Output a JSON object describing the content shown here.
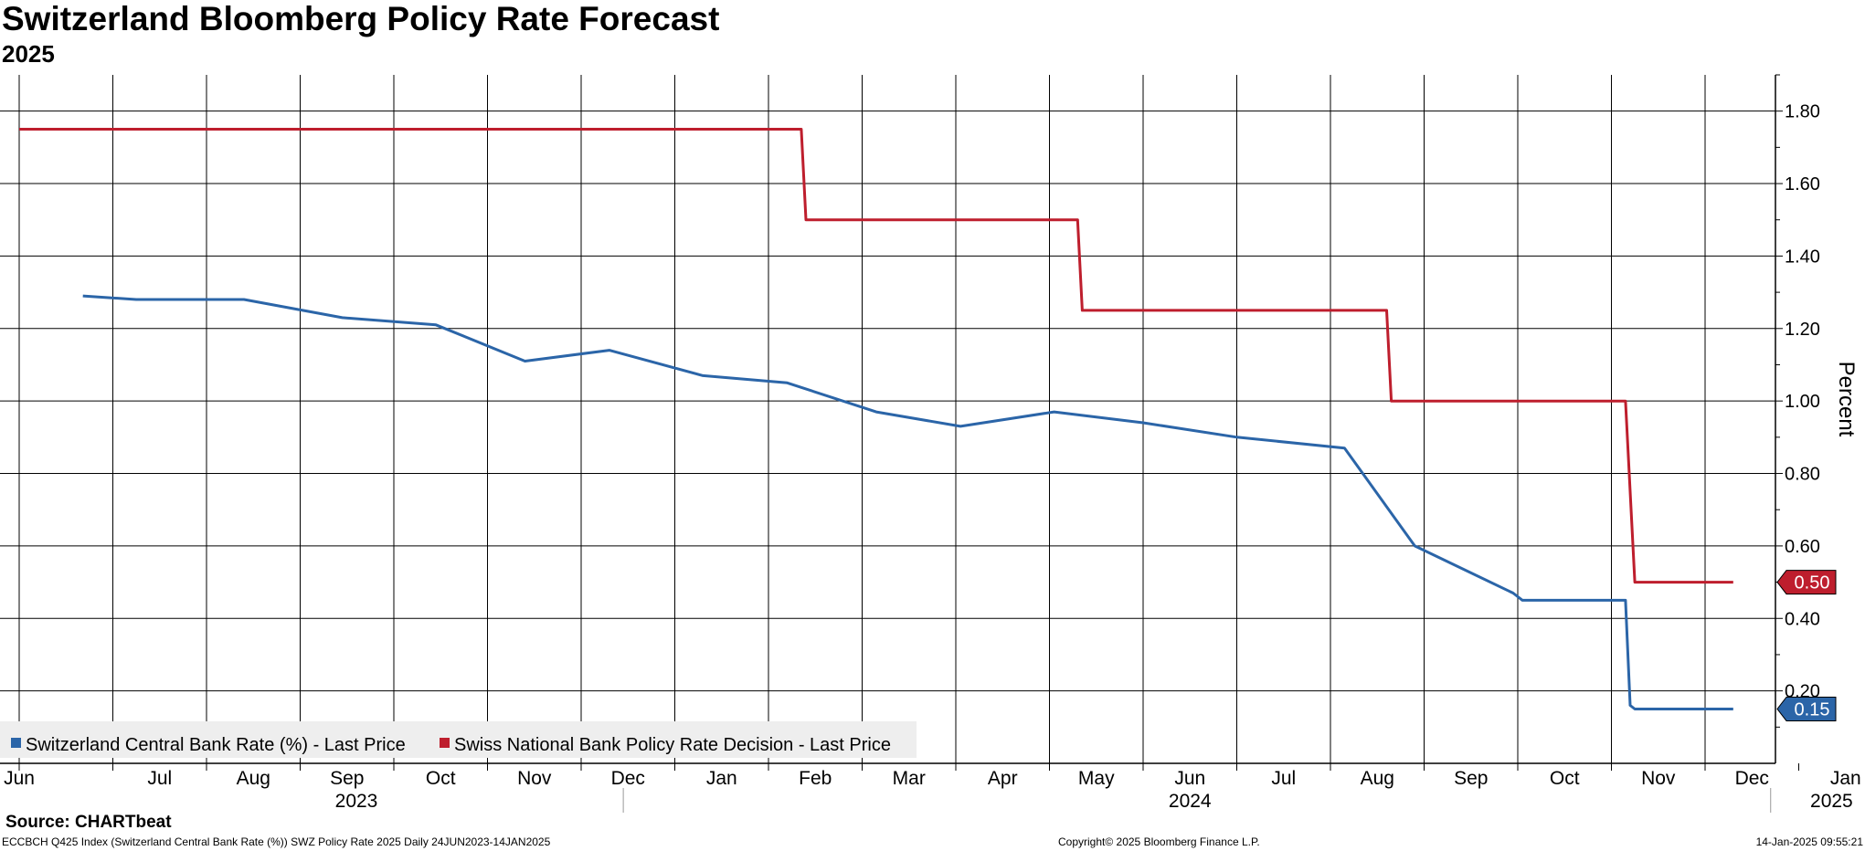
{
  "title": "Switzerland Bloomberg Policy Rate Forecast",
  "subtitle": "2025",
  "source": "Source: CHARTbeat",
  "footer": {
    "left": "ECCBCH Q425 Index (Switzerland Central Bank Rate (%)) SWZ Policy Rate 2025  Daily 24JUN2023-14JAN2025",
    "center": "Copyright© 2025 Bloomberg Finance L.P.",
    "right": "14-Jan-2025 09:55:21"
  },
  "colors": {
    "blue": "#2b65a8",
    "red": "#be1e2d",
    "grid": "#000000",
    "legend_bg": "#eeeeee"
  },
  "chart_data": {
    "type": "line",
    "title": "Switzerland Bloomberg Policy Rate Forecast",
    "subtitle": "2025",
    "xlabel": "",
    "ylabel": "Percent",
    "ylim": [
      0.0,
      1.9
    ],
    "yticks": [
      "0.20",
      "0.40",
      "0.60",
      "0.80",
      "1.00",
      "1.20",
      "1.40",
      "1.60",
      "1.80"
    ],
    "xlim": [
      0,
      19.6
    ],
    "month_labels": [
      "Jun",
      "Jul",
      "Aug",
      "Sep",
      "Oct",
      "Nov",
      "Dec",
      "Jan",
      "Feb",
      "Mar",
      "Apr",
      "May",
      "Jun",
      "Jul",
      "Aug",
      "Sep",
      "Oct",
      "Nov",
      "Dec",
      "Jan"
    ],
    "year_labels": [
      {
        "label": "2023",
        "x": 3.6
      },
      {
        "label": "2024",
        "x": 12.5
      },
      {
        "label": "2025",
        "x": 19.35
      }
    ],
    "year_dividers": [
      6.45,
      18.7
    ],
    "x_unit": "months since Jun 2023 (0 = Jun 2023, 19 = Jan 2025)",
    "grid": true,
    "legend_position": "bottom-left",
    "series": [
      {
        "name": "Switzerland Central Bank Rate (%) - Last Price",
        "color": "#2b65a8",
        "last_value": "0.15",
        "points": [
          [
            0.68,
            1.29
          ],
          [
            1.25,
            1.28
          ],
          [
            2.4,
            1.28
          ],
          [
            3.45,
            1.23
          ],
          [
            4.45,
            1.21
          ],
          [
            5.4,
            1.11
          ],
          [
            6.3,
            1.14
          ],
          [
            7.3,
            1.07
          ],
          [
            8.2,
            1.05
          ],
          [
            9.15,
            0.97
          ],
          [
            10.05,
            0.93
          ],
          [
            11.05,
            0.97
          ],
          [
            12.0,
            0.94
          ],
          [
            13.0,
            0.9
          ],
          [
            14.15,
            0.87
          ],
          [
            14.9,
            0.6
          ],
          [
            15.95,
            0.47
          ],
          [
            16.05,
            0.45
          ],
          [
            17.15,
            0.45
          ],
          [
            17.2,
            0.16
          ],
          [
            17.25,
            0.15
          ],
          [
            18.3,
            0.15
          ]
        ]
      },
      {
        "name": "Swiss National Bank Policy Rate Decision - Last Price",
        "color": "#be1e2d",
        "last_value": "0.50",
        "points": [
          [
            0.0,
            1.75
          ],
          [
            8.35,
            1.75
          ],
          [
            8.4,
            1.5
          ],
          [
            11.3,
            1.5
          ],
          [
            11.35,
            1.25
          ],
          [
            14.6,
            1.25
          ],
          [
            14.65,
            1.0
          ],
          [
            17.15,
            1.0
          ],
          [
            17.25,
            0.5
          ],
          [
            18.3,
            0.5
          ]
        ]
      }
    ]
  }
}
